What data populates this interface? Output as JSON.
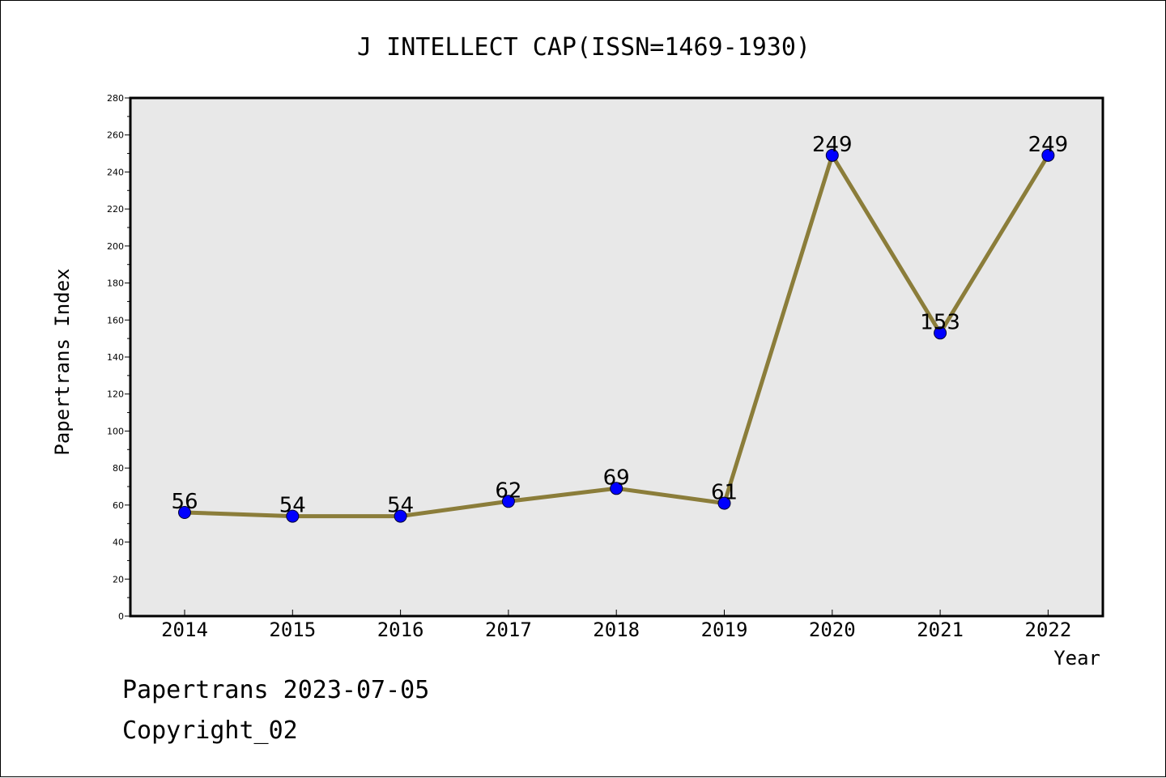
{
  "chart_data": {
    "type": "line",
    "title": "J INTELLECT CAP(ISSN=1469-1930)",
    "xlabel": "Year",
    "ylabel": "Papertrans Index",
    "categories": [
      "2014",
      "2015",
      "2016",
      "2017",
      "2018",
      "2019",
      "2020",
      "2021",
      "2022"
    ],
    "series": [
      {
        "values": [
          56,
          54,
          54,
          62,
          69,
          61,
          249,
          153,
          249
        ]
      }
    ],
    "data_labels": [
      "56",
      "54",
      "54",
      "62",
      "69",
      "61",
      "249",
      "153",
      "249"
    ],
    "ylim": [
      0,
      280
    ],
    "yticks": [
      0,
      20,
      40,
      60,
      80,
      100,
      120,
      140,
      160,
      180,
      200,
      220,
      240,
      260,
      280
    ],
    "ytick_labels": [
      "0",
      "20",
      "40",
      "60",
      "80",
      "100",
      "120",
      "140",
      "160",
      "180",
      "200",
      "220",
      "240",
      "260",
      "280"
    ],
    "grid": false,
    "line_color": "#8b7d3a",
    "marker_color": "#0000ff",
    "plot_background": "#e8e8e8"
  },
  "footer": {
    "date_line": "Papertrans 2023-07-05",
    "copyright_line": "Copyright_02"
  }
}
